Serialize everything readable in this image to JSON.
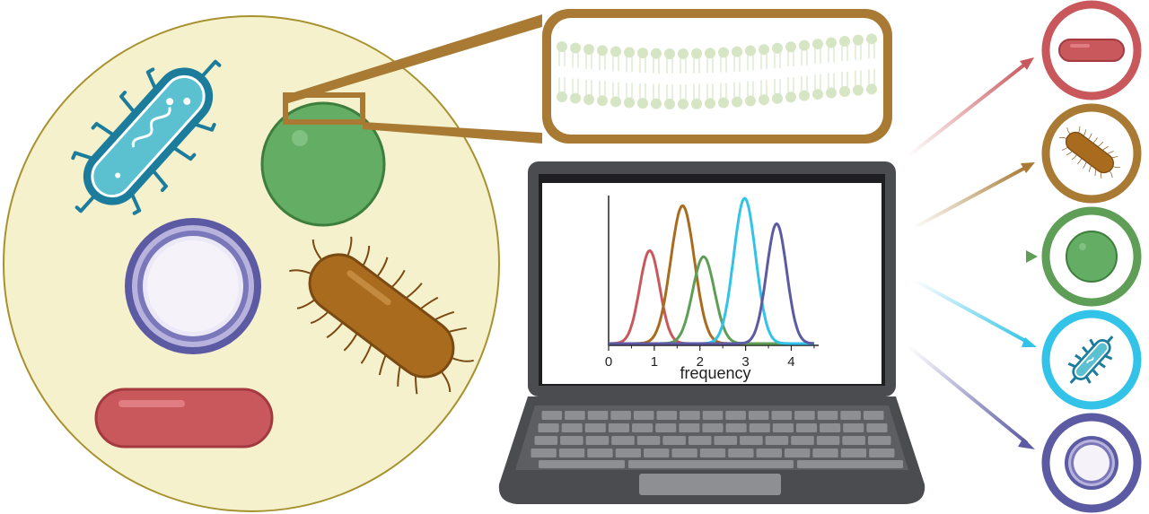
{
  "colors": {
    "petri_fill": "#f5f1cc",
    "petri_stroke": "#a8922f",
    "membrane_frame": "#a87a33",
    "lipid": "#d6e6c4",
    "red": "#c9585d",
    "brown": "#a96c1f",
    "green": "#5e9e57",
    "cyan": "#33c3e8",
    "purple": "#5c5aa3",
    "teal": "#1c7c9c",
    "laptop_body": "#4b4c4f",
    "laptop_screen_bezel": "#3c3d40"
  },
  "icons": [
    "rod-bacterium-icon",
    "coccus-icon",
    "flagellated-bacterium-icon",
    "spore-icon",
    "pili-bacterium-icon",
    "lipid-bilayer-icon",
    "laptop-icon"
  ],
  "chart_data": {
    "type": "line",
    "title": "",
    "xlabel": "frequency",
    "ylabel": "",
    "xlim": [
      0,
      4.6
    ],
    "ylim": [
      0,
      1.0
    ],
    "xticks": [
      "0",
      "1",
      "2",
      "3",
      "4"
    ],
    "grid": false,
    "series": [
      {
        "color": "#c9585d",
        "mu": 0.9,
        "sigma": 0.22,
        "peak": 0.62
      },
      {
        "color": "#a96c1f",
        "mu": 1.62,
        "sigma": 0.26,
        "peak": 0.92
      },
      {
        "color": "#5e9e57",
        "mu": 2.08,
        "sigma": 0.24,
        "peak": 0.58
      },
      {
        "color": "#33c3e8",
        "mu": 2.98,
        "sigma": 0.24,
        "peak": 0.97
      },
      {
        "color": "#5c5aa3",
        "mu": 3.68,
        "sigma": 0.22,
        "peak": 0.8
      }
    ]
  }
}
